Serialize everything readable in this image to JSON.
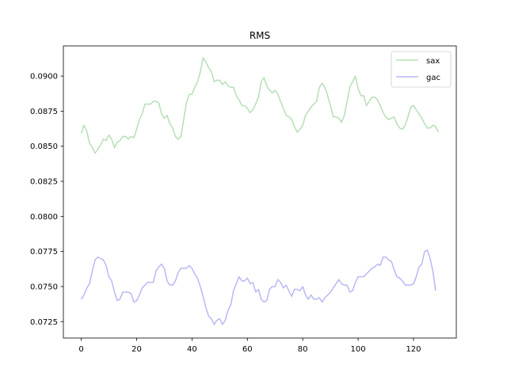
{
  "chart_data": {
    "type": "line",
    "title": "RMS",
    "xlabel": "",
    "ylabel": "",
    "xlim": [
      -6.45,
      135.45
    ],
    "ylim": [
      0.07133,
      0.09215
    ],
    "xticks": [
      0,
      20,
      40,
      60,
      80,
      100,
      120
    ],
    "xtick_labels": [
      "0",
      "20",
      "40",
      "60",
      "80",
      "100",
      "120"
    ],
    "yticks": [
      0.0725,
      0.075,
      0.0775,
      0.08,
      0.0825,
      0.085,
      0.0875,
      0.09
    ],
    "ytick_labels": [
      "0.0725",
      "0.0750",
      "0.0775",
      "0.0800",
      "0.0825",
      "0.0850",
      "0.0875",
      "0.0900"
    ],
    "grid": false,
    "legend_position": "top-right",
    "series": [
      {
        "name": "sax",
        "color": "#b5dfb5",
        "y": [
          0.0859,
          0.0865,
          0.0861,
          0.0852,
          0.0849,
          0.0845,
          0.0848,
          0.0851,
          0.0855,
          0.0854,
          0.0858,
          0.0855,
          0.0849,
          0.0853,
          0.0854,
          0.0857,
          0.0857,
          0.0855,
          0.0857,
          0.0856,
          0.0862,
          0.0869,
          0.0873,
          0.088,
          0.088,
          0.088,
          0.0882,
          0.0882,
          0.0881,
          0.0873,
          0.087,
          0.0872,
          0.0866,
          0.0863,
          0.0857,
          0.0855,
          0.0857,
          0.0869,
          0.0881,
          0.0887,
          0.0887,
          0.0892,
          0.0896,
          0.0903,
          0.0913,
          0.091,
          0.0906,
          0.0903,
          0.0896,
          0.0897,
          0.0897,
          0.0894,
          0.0896,
          0.0893,
          0.0892,
          0.0892,
          0.0886,
          0.0883,
          0.0879,
          0.0879,
          0.0877,
          0.0874,
          0.0876,
          0.088,
          0.0885,
          0.0896,
          0.0899,
          0.0893,
          0.089,
          0.0888,
          0.089,
          0.0887,
          0.0882,
          0.0877,
          0.0872,
          0.0871,
          0.0869,
          0.0864,
          0.086,
          0.0862,
          0.0865,
          0.0872,
          0.0875,
          0.0878,
          0.088,
          0.0882,
          0.0892,
          0.0895,
          0.0892,
          0.0886,
          0.0879,
          0.0871,
          0.0871,
          0.087,
          0.0867,
          0.0872,
          0.0882,
          0.0892,
          0.0896,
          0.09,
          0.0891,
          0.0886,
          0.0886,
          0.0879,
          0.0882,
          0.0885,
          0.0885,
          0.0883,
          0.0879,
          0.0874,
          0.0871,
          0.0869,
          0.087,
          0.0871,
          0.0866,
          0.0863,
          0.0862,
          0.0865,
          0.0871,
          0.0878,
          0.0879,
          0.0876,
          0.0873,
          0.087,
          0.0866,
          0.0863,
          0.0863,
          0.0865,
          0.0864,
          0.086
        ]
      },
      {
        "name": "gac",
        "color": "#b8b8f5",
        "y": [
          0.0741,
          0.0744,
          0.0749,
          0.0752,
          0.0761,
          0.0769,
          0.0771,
          0.077,
          0.0769,
          0.0765,
          0.0757,
          0.0754,
          0.0746,
          0.074,
          0.0741,
          0.0746,
          0.0746,
          0.0746,
          0.0745,
          0.0739,
          0.074,
          0.0744,
          0.0749,
          0.0751,
          0.0753,
          0.0753,
          0.0753,
          0.0761,
          0.0764,
          0.0766,
          0.0763,
          0.0754,
          0.0751,
          0.0751,
          0.0754,
          0.076,
          0.0763,
          0.0763,
          0.0763,
          0.0765,
          0.0763,
          0.0759,
          0.0756,
          0.075,
          0.0743,
          0.0735,
          0.0729,
          0.0727,
          0.0723,
          0.0726,
          0.0727,
          0.0723,
          0.0726,
          0.0733,
          0.0737,
          0.0747,
          0.0752,
          0.0757,
          0.0754,
          0.0754,
          0.0756,
          0.0752,
          0.0753,
          0.0746,
          0.0748,
          0.0741,
          0.0739,
          0.074,
          0.0748,
          0.075,
          0.075,
          0.0755,
          0.0753,
          0.0749,
          0.0751,
          0.0747,
          0.0743,
          0.0748,
          0.0748,
          0.0747,
          0.075,
          0.0744,
          0.0741,
          0.0744,
          0.0741,
          0.0741,
          0.0742,
          0.0739,
          0.0742,
          0.0744,
          0.0746,
          0.0749,
          0.0752,
          0.0755,
          0.0752,
          0.0751,
          0.0751,
          0.0746,
          0.0747,
          0.0753,
          0.0757,
          0.0757,
          0.0757,
          0.0759,
          0.0761,
          0.0763,
          0.0764,
          0.0766,
          0.0765,
          0.0771,
          0.0771,
          0.0769,
          0.0768,
          0.0762,
          0.0757,
          0.0756,
          0.0754,
          0.0751,
          0.0751,
          0.0751,
          0.0752,
          0.0757,
          0.0764,
          0.0766,
          0.0775,
          0.0776,
          0.077,
          0.0761,
          0.0747
        ]
      }
    ]
  }
}
